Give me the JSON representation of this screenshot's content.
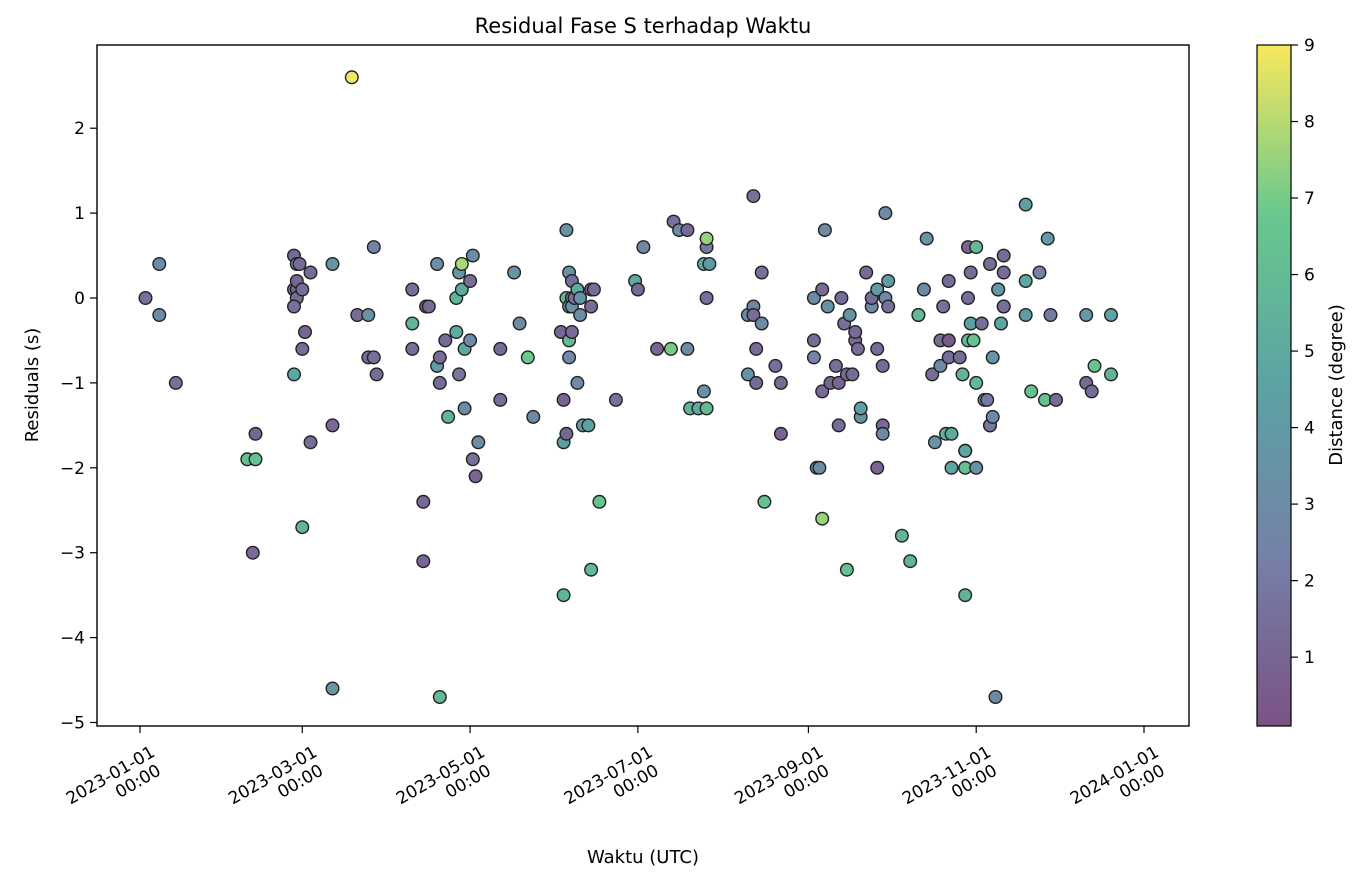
{
  "chart_data": {
    "type": "scatter",
    "title": "Residual Fase S terhadap Waktu",
    "xlabel": "Waktu (UTC)",
    "ylabel": "Residuals (s)",
    "colorbar_label": "Distance (degree)",
    "x_ticks": [
      {
        "date": "2023-01-01",
        "l1": "2023-01-01",
        "l2": "00:00"
      },
      {
        "date": "2023-03-01",
        "l1": "2023-03-01",
        "l2": "00:00"
      },
      {
        "date": "2023-05-01",
        "l1": "2023-05-01",
        "l2": "00:00"
      },
      {
        "date": "2023-07-01",
        "l1": "2023-07-01",
        "l2": "00:00"
      },
      {
        "date": "2023-09-01",
        "l1": "2023-09-01",
        "l2": "00:00"
      },
      {
        "date": "2023-11-01",
        "l1": "2023-11-01",
        "l2": "00:00"
      },
      {
        "date": "2024-01-01",
        "l1": "2024-01-01",
        "l2": "00:00"
      }
    ],
    "y_ticks": [
      "2",
      "1",
      "0",
      "−1",
      "−2",
      "−3",
      "−4",
      "−5"
    ],
    "colorbar_ticks": [
      "9",
      "8",
      "7",
      "6",
      "5",
      "4",
      "3",
      "2",
      "1"
    ],
    "colormap": "viridis",
    "colorbar_range": [
      0.1,
      9
    ],
    "marker_alpha": 0.7,
    "edge_color": "#000000",
    "points": [
      [
        "2023-01-03",
        0.0,
        1.5
      ],
      [
        "2023-01-08",
        0.4,
        3.0
      ],
      [
        "2023-01-08",
        -0.2,
        3.0
      ],
      [
        "2023-01-14",
        -1.0,
        1.5
      ],
      [
        "2023-02-09",
        -1.9,
        6.3
      ],
      [
        "2023-02-12",
        -1.9,
        6.3
      ],
      [
        "2023-02-12",
        -1.6,
        1.0
      ],
      [
        "2023-02-11",
        -3.0,
        1.2
      ],
      [
        "2023-02-26",
        0.5,
        1.2
      ],
      [
        "2023-02-26",
        0.1,
        1.4
      ],
      [
        "2023-02-27",
        0.4,
        3.5
      ],
      [
        "2023-02-27",
        0.1,
        1.0
      ],
      [
        "2023-02-27",
        0.0,
        1.4
      ],
      [
        "2023-02-26",
        -0.1,
        1.5
      ],
      [
        "2023-02-27",
        0.2,
        1.0
      ],
      [
        "2023-02-28",
        0.4,
        1.3
      ],
      [
        "2023-02-26",
        -0.9,
        4.8
      ],
      [
        "2023-02-29",
        -2.7,
        5.5
      ],
      [
        "2023-03-02",
        -0.4,
        1.0
      ],
      [
        "2023-03-01",
        -0.6,
        1.3
      ],
      [
        "2023-03-04",
        0.3,
        1.3
      ],
      [
        "2023-03-04",
        -1.7,
        1.3
      ],
      [
        "2023-03-01",
        0.1,
        1.3
      ],
      [
        "2023-03-12",
        0.4,
        3.6
      ],
      [
        "2023-03-12",
        -1.5,
        1.2
      ],
      [
        "2023-03-12",
        -4.6,
        3.8
      ],
      [
        "2023-03-19",
        2.6,
        8.9
      ],
      [
        "2023-03-21",
        -0.2,
        1.3
      ],
      [
        "2023-03-25",
        -0.2,
        3.5
      ],
      [
        "2023-03-25",
        -0.7,
        1.3
      ],
      [
        "2023-03-27",
        -0.7,
        1.5
      ],
      [
        "2023-03-27",
        0.6,
        2.5
      ],
      [
        "2023-03-28",
        -0.9,
        1.3
      ],
      [
        "2023-04-10",
        0.1,
        1.4
      ],
      [
        "2023-04-10",
        -0.6,
        1.4
      ],
      [
        "2023-04-10",
        -0.3,
        5.5
      ],
      [
        "2023-04-14",
        -2.4,
        1.2
      ],
      [
        "2023-04-14",
        -3.1,
        1.0
      ],
      [
        "2023-04-15",
        -0.1,
        1.0
      ],
      [
        "2023-04-16",
        -0.1,
        1.2
      ],
      [
        "2023-04-19",
        0.4,
        3.2
      ],
      [
        "2023-04-19",
        -0.8,
        4.0
      ],
      [
        "2023-04-20",
        -0.7,
        1.4
      ],
      [
        "2023-04-20",
        -1.0,
        1.3
      ],
      [
        "2023-04-20",
        -4.7,
        5.9
      ],
      [
        "2023-04-22",
        -0.5,
        1.3
      ],
      [
        "2023-04-23",
        -1.4,
        5.6
      ],
      [
        "2023-04-26",
        -0.4,
        5.0
      ],
      [
        "2023-04-26",
        0.0,
        5.5
      ],
      [
        "2023-04-27",
        0.3,
        3.7
      ],
      [
        "2023-04-28",
        0.4,
        7.8
      ],
      [
        "2023-04-28",
        0.1,
        5.0
      ],
      [
        "2023-04-27",
        -0.9,
        1.8
      ],
      [
        "2023-04-29",
        -0.6,
        4.9
      ],
      [
        "2023-04-29",
        -1.3,
        3.0
      ],
      [
        "2023-05-01",
        0.2,
        1.4
      ],
      [
        "2023-05-01",
        -0.5,
        3.0
      ],
      [
        "2023-05-03",
        -2.1,
        1.0
      ],
      [
        "2023-05-02",
        0.5,
        3.0
      ],
      [
        "2023-05-02",
        -1.9,
        1.5
      ],
      [
        "2023-05-04",
        -1.7,
        3.1
      ],
      [
        "2023-05-12",
        -0.6,
        1.3
      ],
      [
        "2023-05-12",
        -1.2,
        1.4
      ],
      [
        "2023-05-17",
        0.3,
        3.5
      ],
      [
        "2023-05-19",
        -0.3,
        3.0
      ],
      [
        "2023-05-22",
        -0.7,
        6.8
      ],
      [
        "2023-05-24",
        -1.4,
        2.8
      ],
      [
        "2023-06-03",
        -0.4,
        1.0
      ],
      [
        "2023-06-04",
        -1.7,
        4.3
      ],
      [
        "2023-06-04",
        -3.5,
        5.5
      ],
      [
        "2023-06-04",
        -1.2,
        1.0
      ],
      [
        "2023-06-05",
        0.8,
        3.5
      ],
      [
        "2023-06-05",
        0.0,
        5.5
      ],
      [
        "2023-06-05",
        -1.6,
        1.0
      ],
      [
        "2023-06-06",
        -0.5,
        6.0
      ],
      [
        "2023-06-06",
        -0.1,
        3.0
      ],
      [
        "2023-06-06",
        0.3,
        3.5
      ],
      [
        "2023-06-07",
        0.2,
        1.5
      ],
      [
        "2023-06-06",
        -0.7,
        3.0
      ],
      [
        "2023-06-07",
        0.0,
        1.5
      ],
      [
        "2023-06-07",
        -0.4,
        1.3
      ],
      [
        "2023-06-07",
        -0.1,
        3.5
      ],
      [
        "2023-06-08",
        0.0,
        1.5
      ],
      [
        "2023-06-09",
        0.1,
        5.0
      ],
      [
        "2023-06-09",
        -1.0,
        3.0
      ],
      [
        "2023-06-10",
        -0.2,
        3.0
      ],
      [
        "2023-06-10",
        0.0,
        3.5
      ],
      [
        "2023-06-11",
        -1.5,
        4.0
      ],
      [
        "2023-06-13",
        -1.5,
        4.5
      ],
      [
        "2023-06-14",
        0.1,
        1.2
      ],
      [
        "2023-06-15",
        0.1,
        1.4
      ],
      [
        "2023-06-14",
        -0.1,
        1.3
      ],
      [
        "2023-06-14",
        -3.2,
        6.0
      ],
      [
        "2023-06-17",
        -2.4,
        6.5
      ],
      [
        "2023-06-23",
        -1.2,
        1.5
      ],
      [
        "2023-06-30",
        0.2,
        5.0
      ],
      [
        "2023-07-01",
        0.1,
        1.2
      ],
      [
        "2023-07-03",
        0.6,
        2.8
      ],
      [
        "2023-07-08",
        -0.6,
        1.0
      ],
      [
        "2023-07-13",
        -0.6,
        7.0
      ],
      [
        "2023-07-14",
        0.9,
        1.5
      ],
      [
        "2023-07-16",
        0.8,
        3.0
      ],
      [
        "2023-07-19",
        0.8,
        1.2
      ],
      [
        "2023-07-19",
        -0.6,
        3.0
      ],
      [
        "2023-07-20",
        -1.3,
        5.5
      ],
      [
        "2023-07-23",
        -1.3,
        5.0
      ],
      [
        "2023-07-25",
        0.4,
        5.0
      ],
      [
        "2023-07-25",
        -1.1,
        3.5
      ],
      [
        "2023-07-26",
        0.0,
        1.5
      ],
      [
        "2023-07-26",
        0.6,
        2.0
      ],
      [
        "2023-07-26",
        0.7,
        7.5
      ],
      [
        "2023-07-27",
        0.4,
        4.0
      ],
      [
        "2023-07-26",
        -1.3,
        6.0
      ],
      [
        "2023-08-10",
        -0.2,
        3.0
      ],
      [
        "2023-08-10",
        -0.9,
        3.5
      ],
      [
        "2023-08-12",
        -0.1,
        2.5
      ],
      [
        "2023-08-12",
        -0.2,
        1.3
      ],
      [
        "2023-08-12",
        1.2,
        1.5
      ],
      [
        "2023-08-13",
        -0.6,
        1.2
      ],
      [
        "2023-08-13",
        -1.0,
        1.3
      ],
      [
        "2023-08-15",
        0.3,
        1.5
      ],
      [
        "2023-08-15",
        -0.3,
        3.0
      ],
      [
        "2023-08-16",
        -2.4,
        6.5
      ],
      [
        "2023-08-20",
        -0.8,
        1.5
      ],
      [
        "2023-08-22",
        -1.0,
        1.2
      ],
      [
        "2023-08-22",
        -1.6,
        1.0
      ],
      [
        "2023-09-03",
        0.0,
        3.0
      ],
      [
        "2023-09-03",
        -0.5,
        1.3
      ],
      [
        "2023-09-03",
        -0.7,
        2.5
      ],
      [
        "2023-09-04",
        -2.0,
        4.3
      ],
      [
        "2023-09-05",
        -2.0,
        3.0
      ],
      [
        "2023-09-06",
        -2.6,
        7.5
      ],
      [
        "2023-09-06",
        -1.1,
        1.3
      ],
      [
        "2023-09-06",
        0.1,
        1.3
      ],
      [
        "2023-09-07",
        0.8,
        3.0
      ],
      [
        "2023-09-08",
        -0.1,
        3.5
      ],
      [
        "2023-09-09",
        -1.0,
        1.0
      ],
      [
        "2023-09-11",
        -0.8,
        1.5
      ],
      [
        "2023-09-12",
        -1.0,
        1.0
      ],
      [
        "2023-09-12",
        -1.5,
        1.3
      ],
      [
        "2023-09-13",
        0.0,
        1.4
      ],
      [
        "2023-09-14",
        -0.3,
        1.5
      ],
      [
        "2023-09-15",
        -0.9,
        1.3
      ],
      [
        "2023-09-15",
        -3.2,
        6.3
      ],
      [
        "2023-09-16",
        -0.2,
        3.5
      ],
      [
        "2023-09-17",
        -0.9,
        1.3
      ],
      [
        "2023-09-18",
        -0.5,
        1.3
      ],
      [
        "2023-09-18",
        -0.4,
        1.3
      ],
      [
        "2023-09-19",
        -0.6,
        1.3
      ],
      [
        "2023-09-20",
        -1.4,
        3.5
      ],
      [
        "2023-09-20",
        -1.3,
        4.5
      ],
      [
        "2023-09-22",
        0.3,
        1.2
      ],
      [
        "2023-09-24",
        -0.1,
        3.0
      ],
      [
        "2023-09-24",
        0.0,
        1.4
      ],
      [
        "2023-09-26",
        0.1,
        4.0
      ],
      [
        "2023-09-26",
        -0.6,
        1.3
      ],
      [
        "2023-09-26",
        -2.0,
        1.0
      ],
      [
        "2023-09-28",
        -0.8,
        1.2
      ],
      [
        "2023-09-28",
        -1.5,
        1.3
      ],
      [
        "2023-09-28",
        -1.6,
        2.8
      ],
      [
        "2023-09-29",
        0.0,
        3.0
      ],
      [
        "2023-09-29",
        1.0,
        3.0
      ],
      [
        "2023-09-30",
        0.2,
        4.0
      ],
      [
        "2023-09-30",
        -0.1,
        1.5
      ],
      [
        "2023-10-05",
        -2.8,
        5.5
      ],
      [
        "2023-10-08",
        -3.1,
        5.5
      ],
      [
        "2023-10-11",
        -0.2,
        5.5
      ],
      [
        "2023-10-11",
        -0.2,
        6.0
      ],
      [
        "2023-10-13",
        0.1,
        3.0
      ],
      [
        "2023-10-14",
        0.7,
        3.5
      ],
      [
        "2023-10-16",
        -0.9,
        1.4
      ],
      [
        "2023-10-17",
        -1.7,
        3.5
      ],
      [
        "2023-10-19",
        -0.5,
        1.3
      ],
      [
        "2023-10-19",
        -0.8,
        3.0
      ],
      [
        "2023-10-20",
        -0.1,
        1.5
      ],
      [
        "2023-10-22",
        0.2,
        1.3
      ],
      [
        "2023-10-22",
        -0.5,
        0.3
      ],
      [
        "2023-10-22",
        -0.5,
        0.5
      ],
      [
        "2023-10-22",
        -0.7,
        1.4
      ],
      [
        "2023-10-21",
        -1.6,
        5.5
      ],
      [
        "2023-10-23",
        -1.6,
        5.0
      ],
      [
        "2023-10-23",
        -2.0,
        4.8
      ],
      [
        "2023-10-26",
        -0.7,
        1.3
      ],
      [
        "2023-10-27",
        -0.9,
        5.5
      ],
      [
        "2023-10-28",
        -1.8,
        4.8
      ],
      [
        "2023-10-28",
        -2.0,
        6.3
      ],
      [
        "2023-10-28",
        -3.5,
        5.5
      ],
      [
        "2023-10-28",
        -1.8,
        4.8
      ],
      [
        "2023-10-29",
        0.0,
        1.4
      ],
      [
        "2023-10-29",
        0.6,
        1.0
      ],
      [
        "2023-10-29",
        -0.5,
        5.8
      ],
      [
        "2023-10-30",
        -0.3,
        4.5
      ],
      [
        "2023-10-30",
        0.3,
        1.4
      ],
      [
        "2023-10-31",
        -0.5,
        6.5
      ],
      [
        "2023-11-01",
        0.6,
        6.0
      ],
      [
        "2023-11-01",
        -2.0,
        3.5
      ],
      [
        "2023-11-01",
        -1.0,
        6.0
      ],
      [
        "2023-11-03",
        -0.3,
        1.4
      ],
      [
        "2023-11-04",
        -1.2,
        3.5
      ],
      [
        "2023-11-05",
        -1.2,
        2.0
      ],
      [
        "2023-11-06",
        0.4,
        1.4
      ],
      [
        "2023-11-06",
        -1.5,
        3.5
      ],
      [
        "2023-11-06",
        -1.5,
        2.0
      ],
      [
        "2023-11-07",
        -1.4,
        3.0
      ],
      [
        "2023-11-07",
        -0.7,
        3.5
      ],
      [
        "2023-11-08",
        -4.7,
        2.8
      ],
      [
        "2023-11-09",
        0.1,
        1.5
      ],
      [
        "2023-11-09",
        0.1,
        3.8
      ],
      [
        "2023-11-10",
        -0.3,
        4.8
      ],
      [
        "2023-11-11",
        0.3,
        1.3
      ],
      [
        "2023-11-11",
        0.5,
        1.3
      ],
      [
        "2023-11-11",
        -0.1,
        0.3
      ],
      [
        "2023-11-11",
        -0.1,
        1.5
      ],
      [
        "2023-11-19",
        -0.2,
        4.0
      ],
      [
        "2023-11-19",
        0.2,
        4.8
      ],
      [
        "2023-11-19",
        1.1,
        4.3
      ],
      [
        "2023-11-21",
        -1.1,
        6.5
      ],
      [
        "2023-11-24",
        0.3,
        2.5
      ],
      [
        "2023-11-26",
        -1.2,
        6.3
      ],
      [
        "2023-11-27",
        0.7,
        4.0
      ],
      [
        "2023-11-28",
        -0.2,
        2.0
      ],
      [
        "2023-11-30",
        -1.2,
        1.3
      ],
      [
        "2023-12-11",
        -0.2,
        4.0
      ],
      [
        "2023-12-11",
        -1.0,
        1.3
      ],
      [
        "2023-12-13",
        -1.1,
        1.3
      ],
      [
        "2023-12-14",
        -0.8,
        6.5
      ],
      [
        "2023-12-20",
        -0.2,
        4.5
      ],
      [
        "2023-12-20",
        -0.9,
        5.5
      ]
    ]
  }
}
